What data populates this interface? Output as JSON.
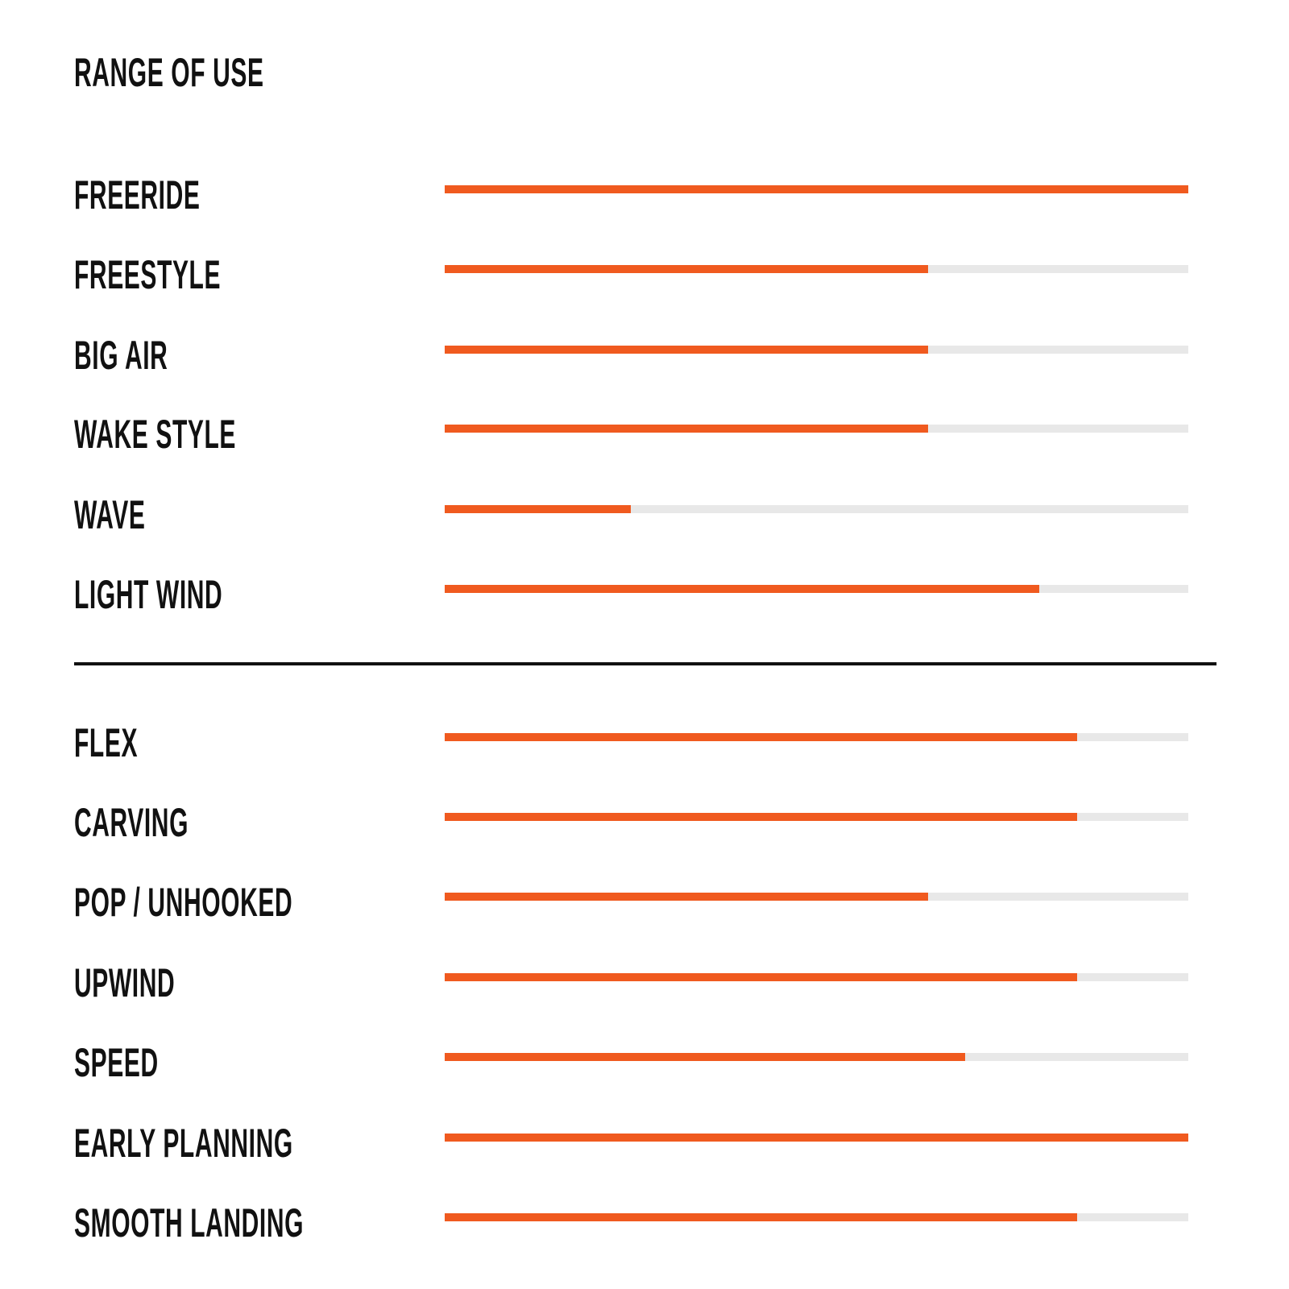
{
  "title": "RANGE OF USE",
  "colors": {
    "fill": "#f05a1f",
    "track": "#e8e8e8",
    "text": "#111111"
  },
  "chart_data": {
    "type": "bar",
    "orientation": "horizontal",
    "title": "RANGE OF USE",
    "xlim": [
      0,
      1
    ],
    "groups": [
      {
        "categories": [
          "FREERIDE",
          "FREESTYLE",
          "BIG AIR",
          "WAKE STYLE",
          "WAVE",
          "LIGHT WIND"
        ],
        "values": [
          1.0,
          0.65,
          0.65,
          0.65,
          0.25,
          0.8
        ]
      },
      {
        "categories": [
          "FLEX",
          "CARVING",
          "POP / UNHOOKED",
          "UPWIND",
          "SPEED",
          "EARLY PLANNING",
          "SMOOTH LANDING"
        ],
        "values": [
          0.85,
          0.85,
          0.65,
          0.85,
          0.7,
          1.0,
          0.85
        ]
      }
    ]
  }
}
